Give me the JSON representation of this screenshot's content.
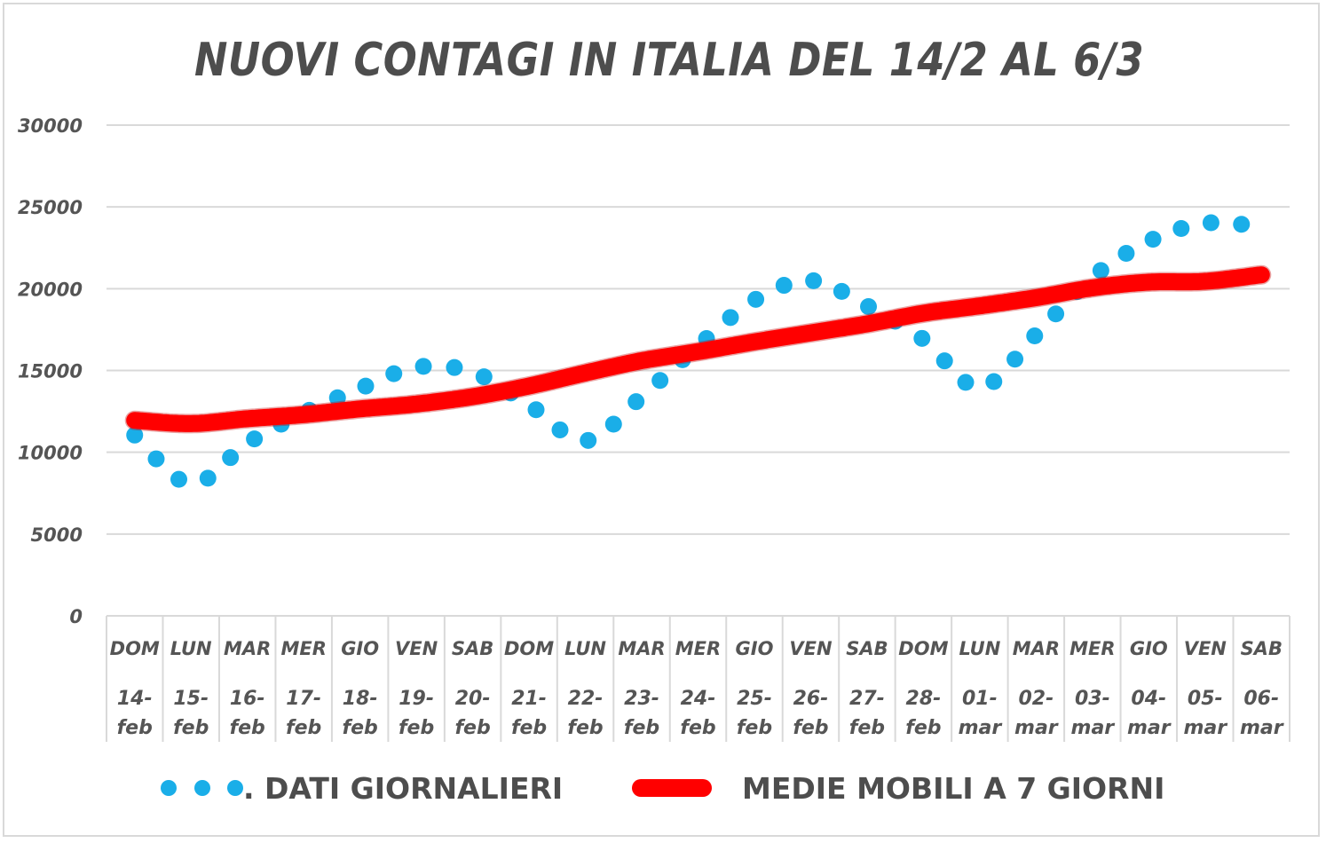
{
  "chart_data": {
    "type": "line",
    "title": "NUOVI CONTAGI IN ITALIA DEL 14/2 AL 6/3",
    "xlabel": "",
    "ylabel": "",
    "ylim": [
      0,
      30000
    ],
    "yticks": [
      0,
      5000,
      10000,
      15000,
      20000,
      25000,
      30000
    ],
    "ytick_labels": [
      "0",
      "5000",
      "10000",
      "15000",
      "20000",
      "25000",
      "30000"
    ],
    "grid": true,
    "legend_position": "bottom",
    "categories_day": [
      "DOM",
      "LUN",
      "MAR",
      "MER",
      "GIO",
      "VEN",
      "SAB",
      "DOM",
      "LUN",
      "MAR",
      "MER",
      "GIO",
      "VEN",
      "SAB",
      "DOM",
      "LUN",
      "MAR",
      "MER",
      "GIO",
      "VEN",
      "SAB"
    ],
    "categories_date": [
      [
        "14-",
        "feb"
      ],
      [
        "15-",
        "feb"
      ],
      [
        "16-",
        "feb"
      ],
      [
        "17-",
        "feb"
      ],
      [
        "18-",
        "feb"
      ],
      [
        "19-",
        "feb"
      ],
      [
        "20-",
        "feb"
      ],
      [
        "21-",
        "feb"
      ],
      [
        "22-",
        "feb"
      ],
      [
        "23-",
        "feb"
      ],
      [
        "24-",
        "feb"
      ],
      [
        "25-",
        "feb"
      ],
      [
        "26-",
        "feb"
      ],
      [
        "27-",
        "feb"
      ],
      [
        "28-",
        "feb"
      ],
      [
        "01-",
        "mar"
      ],
      [
        "02-",
        "mar"
      ],
      [
        "03-",
        "mar"
      ],
      [
        "04-",
        "mar"
      ],
      [
        "05-",
        "mar"
      ],
      [
        "06-",
        "mar"
      ]
    ],
    "series": [
      {
        "name": ". DATI GIORNALIERI",
        "style": "dotted",
        "color": "#1aaee8",
        "values": [
          11050,
          8050,
          10550,
          12400,
          13900,
          15200,
          14900,
          12900,
          10700,
          13400,
          16500,
          19300,
          20500,
          18950,
          16900,
          13950,
          17200,
          20700,
          22900,
          24000,
          23800
        ]
      },
      {
        "name": "MEDIE MOBILI A 7 GIORNI",
        "style": "solid",
        "color": "#ff0000",
        "values": [
          11950,
          11750,
          12050,
          12300,
          12650,
          12950,
          13400,
          14050,
          14850,
          15600,
          16150,
          16750,
          17300,
          17850,
          18500,
          18950,
          19450,
          20050,
          20400,
          20450,
          20850
        ]
      }
    ]
  }
}
